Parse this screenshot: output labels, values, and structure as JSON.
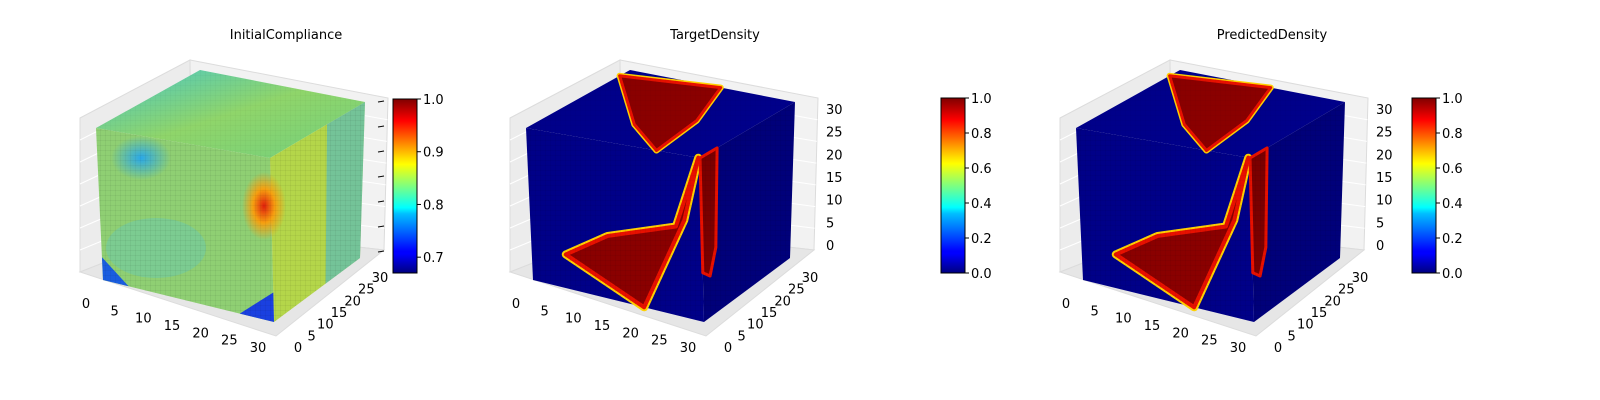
{
  "chart_data": [
    {
      "type": "voxel",
      "title": "InitialCompliance",
      "field": "compliance",
      "x_ticks": [
        "0",
        "5",
        "10",
        "15",
        "20",
        "25",
        "30"
      ],
      "y_ticks": [
        "0",
        "5",
        "10",
        "15",
        "20",
        "25",
        "30"
      ],
      "z_ticks": [],
      "colorbar": {
        "cmap": "jet",
        "range": [
          0.67,
          1.0
        ],
        "ticks": [
          "0.7",
          "0.8",
          "0.9",
          "1.0"
        ],
        "tick_values": [
          0.7,
          0.8,
          0.9,
          1.0
        ]
      }
    },
    {
      "type": "voxel",
      "title": "TargetDensity",
      "field": "density",
      "x_ticks": [
        "0",
        "5",
        "10",
        "15",
        "20",
        "25",
        "30"
      ],
      "y_ticks": [
        "0",
        "5",
        "10",
        "15",
        "20",
        "25",
        "30"
      ],
      "z_ticks": [
        "0",
        "5",
        "10",
        "15",
        "20",
        "25",
        "30"
      ],
      "colorbar": {
        "cmap": "jet",
        "range": [
          0.0,
          1.0
        ],
        "ticks": [
          "0.0",
          "0.2",
          "0.4",
          "0.6",
          "0.8",
          "1.0"
        ],
        "tick_values": [
          0,
          0.2,
          0.4,
          0.6,
          0.8,
          1.0
        ]
      }
    },
    {
      "type": "voxel",
      "title": "PredictedDensity",
      "field": "density",
      "x_ticks": [
        "0",
        "5",
        "10",
        "15",
        "20",
        "25",
        "30"
      ],
      "y_ticks": [
        "0",
        "5",
        "10",
        "15",
        "20",
        "25",
        "30"
      ],
      "z_ticks": [
        "0",
        "5",
        "10",
        "15",
        "20",
        "25",
        "30"
      ],
      "colorbar": {
        "cmap": "jet",
        "range": [
          0.0,
          1.0
        ],
        "ticks": [
          "0.0",
          "0.2",
          "0.4",
          "0.6",
          "0.8",
          "1.0"
        ],
        "tick_values": [
          0,
          0.2,
          0.4,
          0.6,
          0.8,
          1.0
        ]
      }
    }
  ]
}
